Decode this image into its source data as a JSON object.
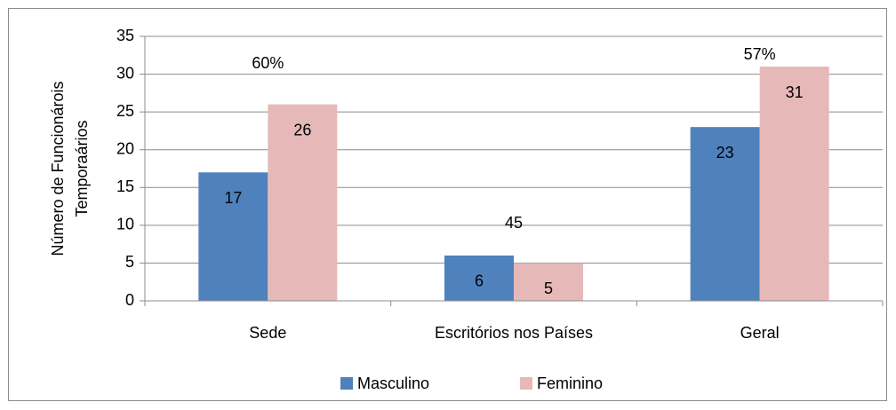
{
  "chart_data": {
    "type": "bar",
    "y_label": [
      "Número de Funcionárois",
      "Temporaários"
    ],
    "categories": [
      "Sede",
      "Escritórios nos Países",
      "Geral"
    ],
    "series": [
      {
        "name": "Masculino",
        "color": "#4f81bd",
        "values": [
          17,
          6,
          23
        ]
      },
      {
        "name": "Feminino",
        "color": "#e6b9b8",
        "values": [
          26,
          5,
          31
        ]
      }
    ],
    "annotations": [
      "60%",
      "45",
      "57%"
    ],
    "ylim": [
      0,
      35
    ],
    "yticks": [
      0,
      5,
      10,
      15,
      20,
      25,
      30,
      35
    ],
    "grid": true,
    "legend": "bottom"
  }
}
